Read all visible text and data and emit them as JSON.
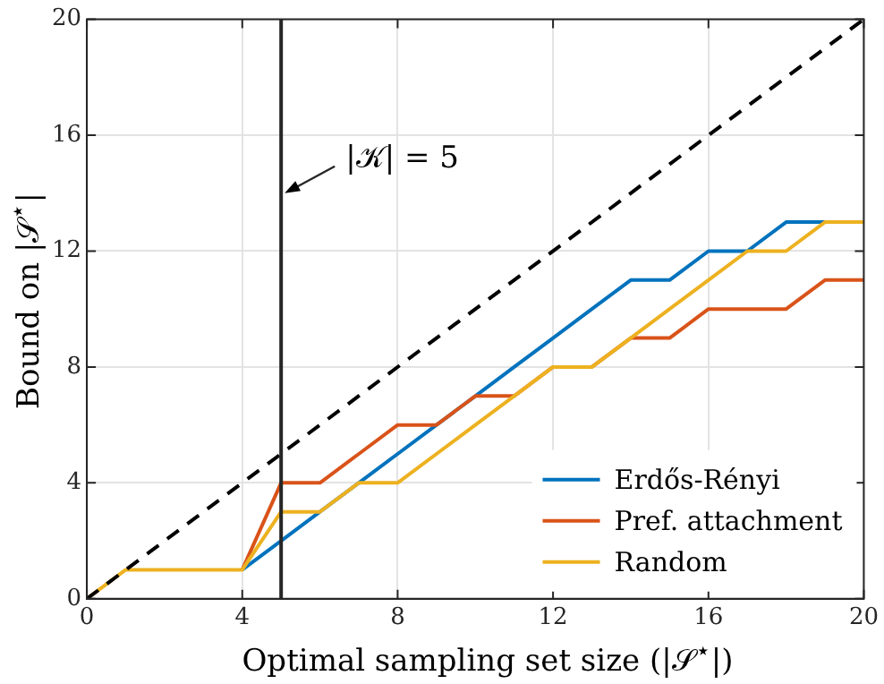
{
  "chart_data": {
    "type": "line",
    "xlabel": "Optimal sampling set size (|𝒮$^{⋆}$|)",
    "ylabel": "Bound on |𝒮$^{⋆}$|",
    "x": [
      0,
      1,
      2,
      3,
      4,
      5,
      6,
      7,
      8,
      9,
      10,
      11,
      12,
      13,
      14,
      15,
      16,
      17,
      18,
      19,
      20
    ],
    "series": [
      {
        "name": "Erdős-Rényi",
        "color": "#0072bd",
        "values": [
          null,
          null,
          null,
          null,
          1,
          2,
          3,
          4,
          5,
          6,
          7,
          8,
          9,
          10,
          11,
          11,
          12,
          12,
          13,
          13,
          13
        ]
      },
      {
        "name": "Pref. attachment",
        "color": "#d95319",
        "values": [
          null,
          null,
          null,
          null,
          1,
          4,
          4,
          5,
          6,
          6,
          7,
          7,
          8,
          8,
          9,
          9,
          10,
          10,
          10,
          11,
          11
        ]
      },
      {
        "name": "Random",
        "color": "#edb120",
        "values": [
          0,
          1,
          1,
          1,
          1,
          3,
          3,
          4,
          4,
          5,
          6,
          7,
          8,
          8,
          9,
          10,
          11,
          12,
          12,
          13,
          13
        ]
      },
      {
        "x": [
          0,
          20
        ],
        "color": "#000000",
        "line_style": "dashed",
        "values": [
          0,
          20
        ]
      }
    ],
    "ref_lines": [
      {
        "axis": "x",
        "value": 5,
        "color": "#262626"
      }
    ],
    "annotations": [
      {
        "text": "|𝒦| = 5",
        "x": 5,
        "y": 14
      }
    ],
    "xlim": [
      0,
      20
    ],
    "xticks": [
      0,
      4,
      8,
      12,
      16,
      20
    ],
    "ylim": [
      0,
      20
    ],
    "yticks": [
      0,
      4,
      8,
      12,
      16,
      20
    ],
    "grid": true,
    "legend": "bottom right",
    "marker": "none"
  }
}
